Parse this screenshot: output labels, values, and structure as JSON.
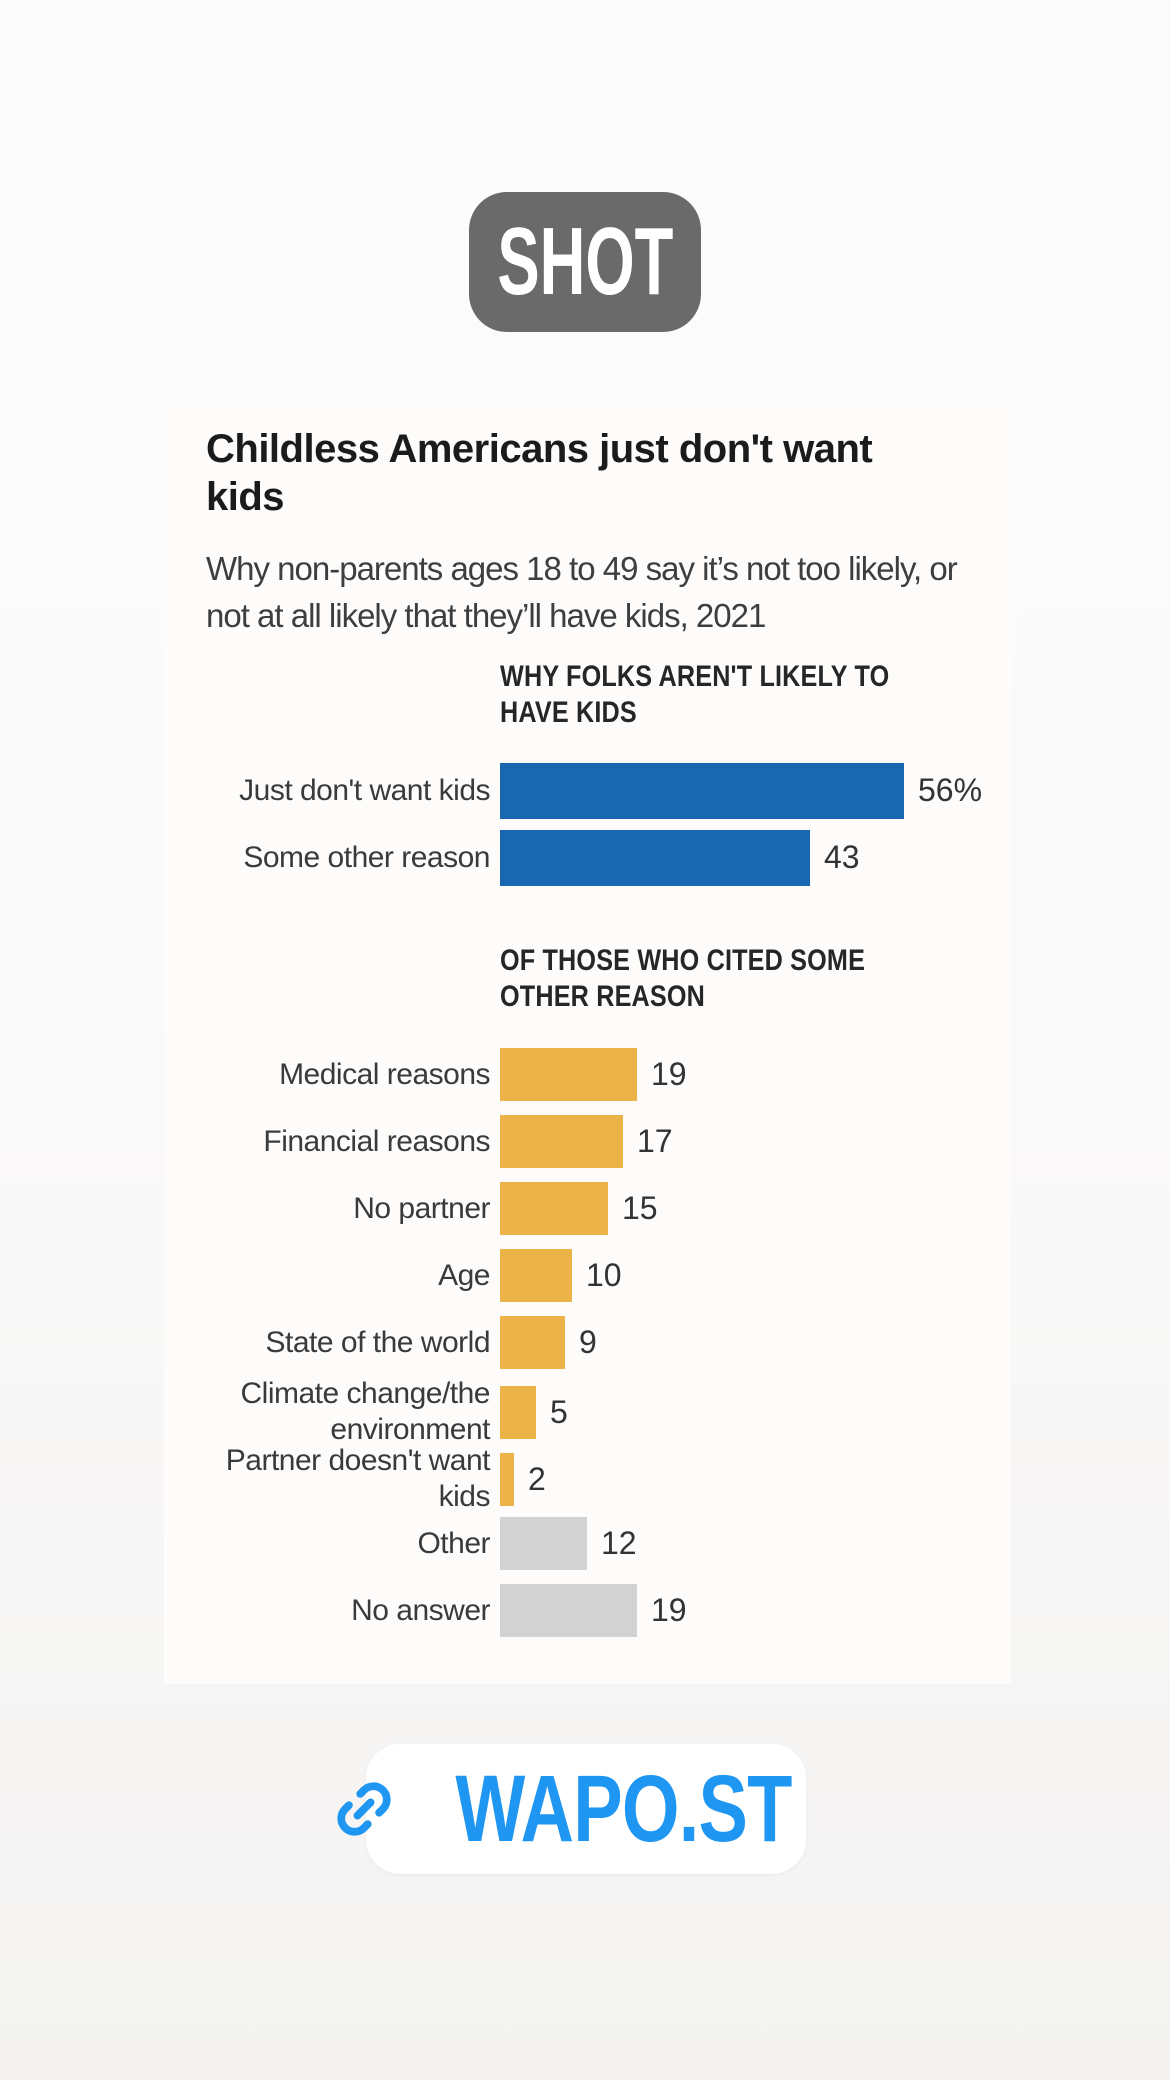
{
  "app_badge": {
    "label": "SHOT"
  },
  "chart_card": {
    "title": "Childless Americans just don't want kids",
    "subtitle": "Why non-parents ages 18 to 49 say it’s not too likely, or not at all likely that they’ll have kids, 2021"
  },
  "chart_data": [
    {
      "type": "bar",
      "orientation": "horizontal",
      "title": "WHY FOLKS AREN'T LIKELY TO HAVE KIDS",
      "categories": [
        "Just don't want kids",
        "Some other reason"
      ],
      "values": [
        56,
        43
      ],
      "value_labels": [
        "56%",
        "43"
      ],
      "unit": "percent",
      "xlim": [
        0,
        56
      ],
      "bar_colors": [
        "#1a67b1",
        "#1a67b1"
      ],
      "grid": false,
      "legend": false
    },
    {
      "type": "bar",
      "orientation": "horizontal",
      "title": "OF THOSE WHO CITED SOME OTHER REASON",
      "categories": [
        "Medical reasons",
        "Financial reasons",
        "No partner",
        "Age",
        "State of the world",
        "Climate change/the environment",
        "Partner doesn't want kids",
        "Other",
        "No answer"
      ],
      "values": [
        19,
        17,
        15,
        10,
        9,
        5,
        2,
        12,
        19
      ],
      "value_labels": [
        "19",
        "17",
        "15",
        "10",
        "9",
        "5",
        "2",
        "12",
        "19"
      ],
      "unit": "percent",
      "xlim": [
        0,
        56
      ],
      "bar_colors": [
        "#ebb348",
        "#ebb348",
        "#ebb348",
        "#ebb348",
        "#ebb348",
        "#ebb348",
        "#ebb348",
        "#d2d2d2",
        "#d2d2d2"
      ],
      "grid": false,
      "legend": false
    }
  ],
  "link_badge": {
    "label": "WAPO.ST",
    "icon": "link-icon",
    "color": "#1e96f2"
  },
  "colors": {
    "bar_blue": "#1a67b1",
    "bar_gold": "#ebb348",
    "bar_gray": "#d2d2d2",
    "shot_badge_gray": "#6a6a6a",
    "link_blue": "#1e96f2",
    "card_background": "#fdfcfb",
    "page_background": "#f8f7f6"
  }
}
